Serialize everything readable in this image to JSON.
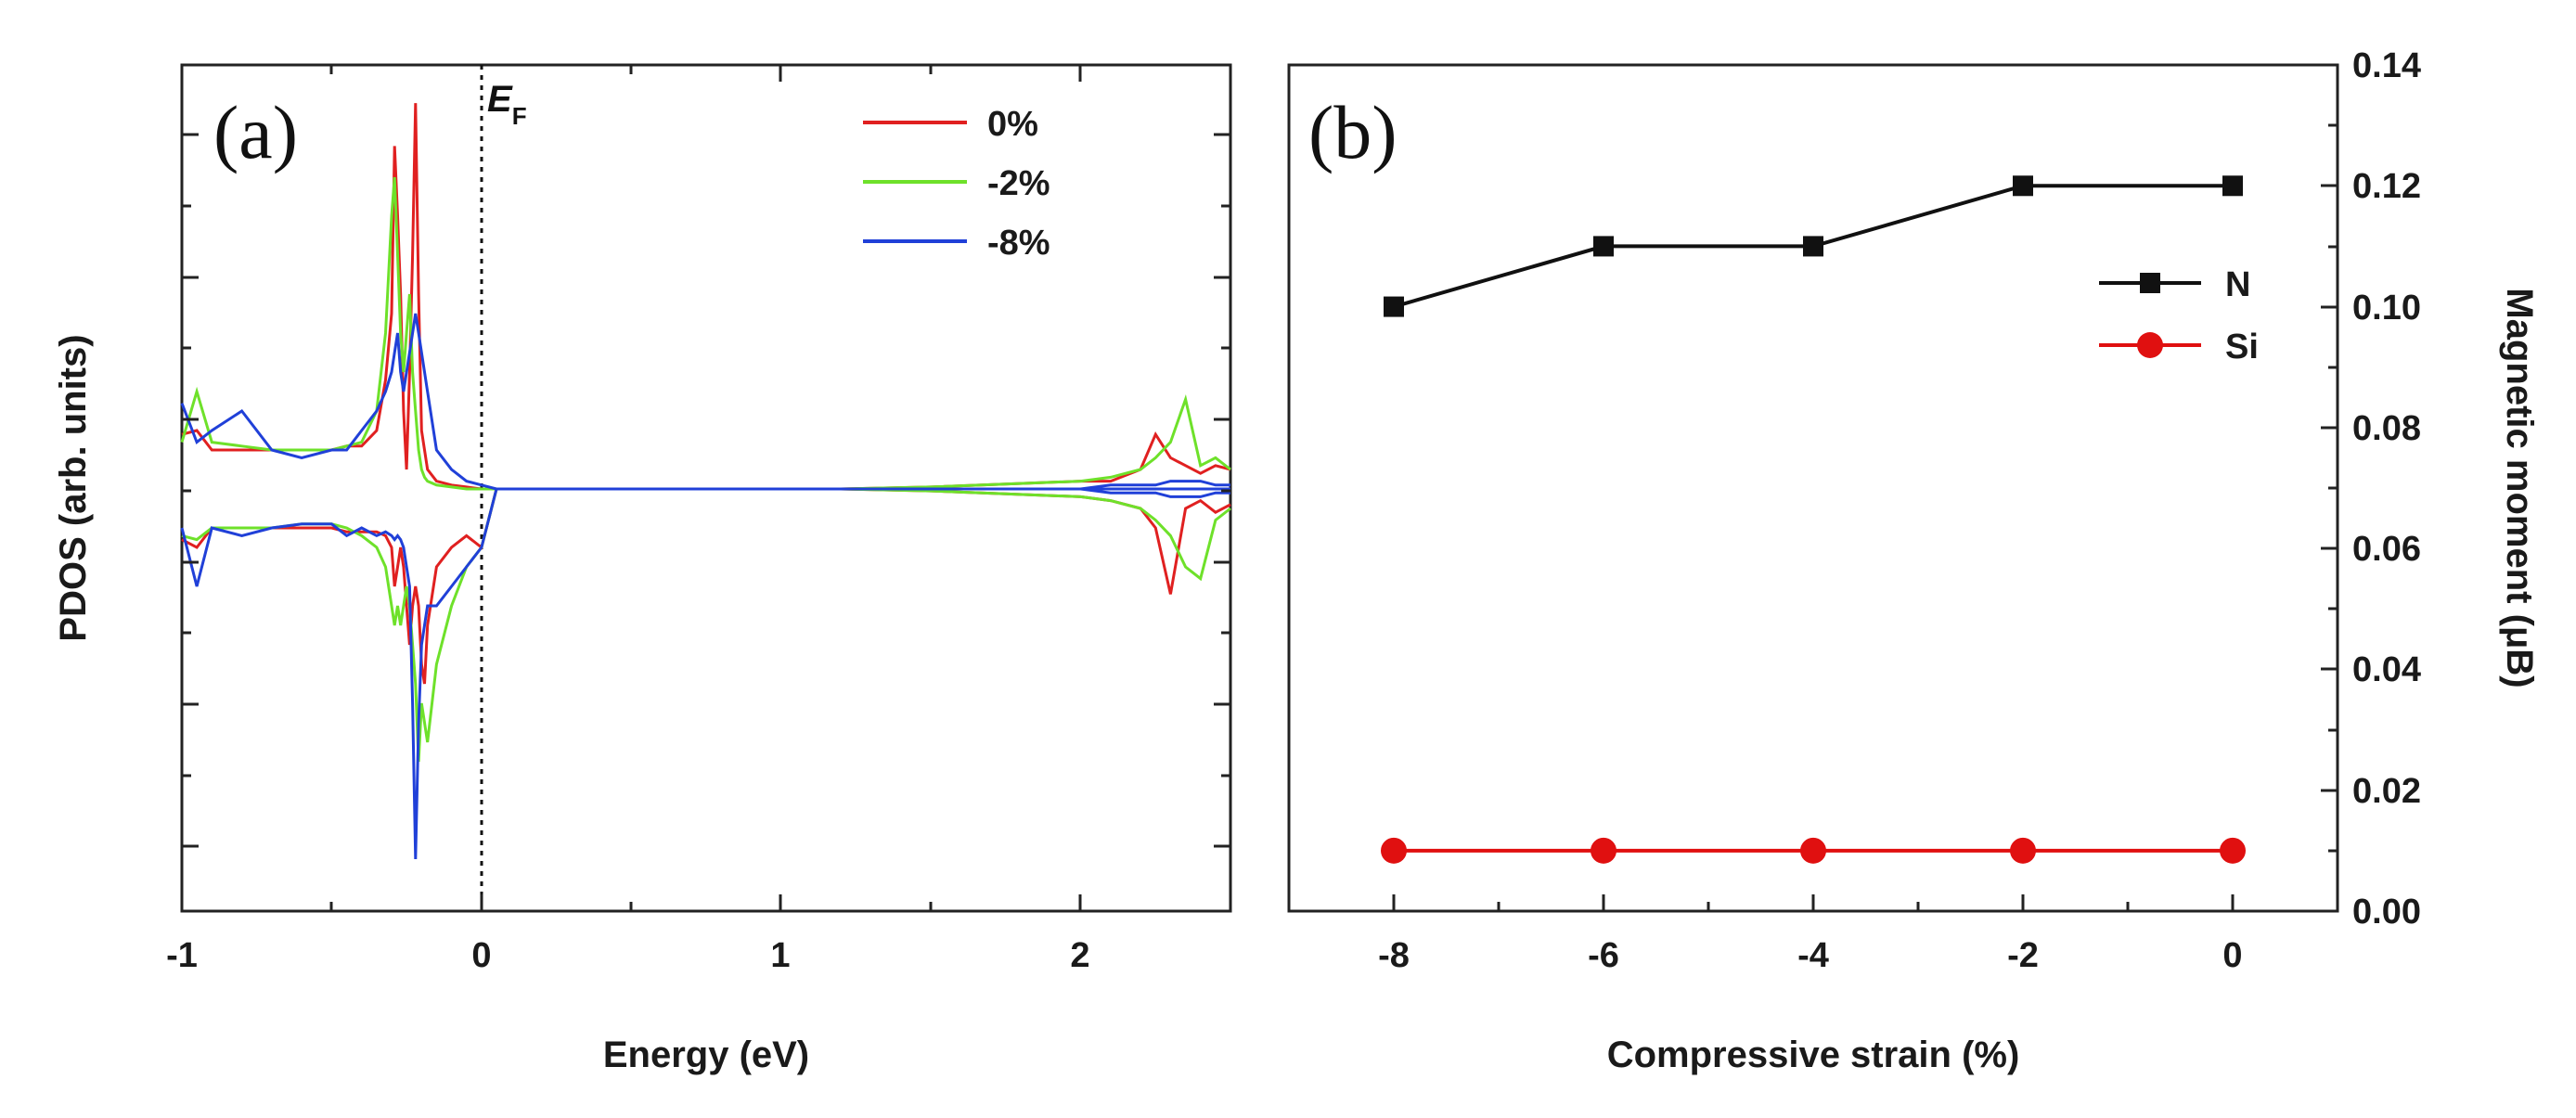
{
  "chart_data": [
    {
      "panel": "(a)",
      "type": "line",
      "xlabel": "Energy (eV)",
      "ylabel": "PDOS (arb. units)",
      "xlim": [
        -1,
        2.5
      ],
      "ylim": [
        -1,
        1
      ],
      "xticks": [
        "-1",
        "0",
        "1",
        "2"
      ],
      "yticks_labeled": false,
      "annotation": {
        "main": "E",
        "sub": "F",
        "at_x": 0
      },
      "series": [
        {
          "name": "0%",
          "color": "#e02020",
          "x": [
            -1,
            -0.95,
            -0.9,
            -0.8,
            -0.7,
            -0.6,
            -0.5,
            -0.45,
            -0.4,
            -0.35,
            -0.32,
            -0.3,
            -0.29,
            -0.28,
            -0.27,
            -0.26,
            -0.25,
            -0.24,
            -0.23,
            -0.22,
            -0.21,
            -0.2,
            -0.19,
            -0.18,
            -0.15,
            -0.1,
            -0.05,
            0,
            0.05,
            1.2,
            1.5,
            2.0,
            2.1,
            2.2,
            2.25,
            2.3,
            2.35,
            2.4,
            2.45,
            2.5
          ],
          "up": [
            0.14,
            0.15,
            0.1,
            0.1,
            0.1,
            0.1,
            0.1,
            0.11,
            0.11,
            0.15,
            0.28,
            0.45,
            0.88,
            0.7,
            0.5,
            0.2,
            0.05,
            0.3,
            0.6,
            0.99,
            0.5,
            0.15,
            0.1,
            0.05,
            0.02,
            0.01,
            0.005,
            0.0,
            0.0,
            0.0,
            0.005,
            0.02,
            0.02,
            0.05,
            0.14,
            0.08,
            0.06,
            0.04,
            0.06,
            0.05
          ],
          "down": [
            -0.13,
            -0.15,
            -0.1,
            -0.1,
            -0.1,
            -0.1,
            -0.1,
            -0.11,
            -0.11,
            -0.11,
            -0.12,
            -0.15,
            -0.25,
            -0.2,
            -0.15,
            -0.2,
            -0.3,
            -0.4,
            -0.3,
            -0.25,
            -0.3,
            -0.45,
            -0.5,
            -0.35,
            -0.2,
            -0.15,
            -0.12,
            -0.15,
            -0.0,
            0.0,
            -0.005,
            -0.02,
            -0.03,
            -0.05,
            -0.1,
            -0.27,
            -0.05,
            -0.03,
            -0.06,
            -0.04
          ]
        },
        {
          "name": "-2%",
          "color": "#6ee12a",
          "x": [
            -1,
            -0.95,
            -0.9,
            -0.8,
            -0.7,
            -0.6,
            -0.5,
            -0.45,
            -0.4,
            -0.35,
            -0.32,
            -0.3,
            -0.29,
            -0.28,
            -0.27,
            -0.26,
            -0.25,
            -0.24,
            -0.23,
            -0.22,
            -0.21,
            -0.2,
            -0.19,
            -0.18,
            -0.15,
            -0.1,
            -0.05,
            0,
            0.05,
            1.2,
            1.5,
            2.0,
            2.1,
            2.2,
            2.25,
            2.3,
            2.35,
            2.4,
            2.45,
            2.5
          ],
          "up": [
            0.12,
            0.25,
            0.12,
            0.11,
            0.1,
            0.1,
            0.1,
            0.11,
            0.12,
            0.2,
            0.4,
            0.7,
            0.8,
            0.6,
            0.4,
            0.3,
            0.4,
            0.5,
            0.3,
            0.2,
            0.1,
            0.05,
            0.03,
            0.02,
            0.01,
            0.005,
            0.0,
            0.0,
            0.0,
            0.0,
            0.005,
            0.02,
            0.03,
            0.05,
            0.08,
            0.12,
            0.23,
            0.06,
            0.08,
            0.05
          ],
          "down": [
            -0.12,
            -0.13,
            -0.1,
            -0.1,
            -0.1,
            -0.09,
            -0.09,
            -0.1,
            -0.12,
            -0.15,
            -0.2,
            -0.3,
            -0.35,
            -0.3,
            -0.35,
            -0.3,
            -0.25,
            -0.3,
            -0.4,
            -0.5,
            -0.7,
            -0.55,
            -0.6,
            -0.65,
            -0.45,
            -0.3,
            -0.2,
            -0.15,
            0.0,
            0.0,
            -0.005,
            -0.02,
            -0.03,
            -0.05,
            -0.08,
            -0.12,
            -0.2,
            -0.23,
            -0.08,
            -0.05
          ]
        },
        {
          "name": "-8%",
          "color": "#2040d8",
          "x": [
            -1,
            -0.95,
            -0.9,
            -0.8,
            -0.7,
            -0.6,
            -0.5,
            -0.45,
            -0.4,
            -0.35,
            -0.32,
            -0.3,
            -0.29,
            -0.28,
            -0.27,
            -0.26,
            -0.25,
            -0.24,
            -0.23,
            -0.22,
            -0.21,
            -0.2,
            -0.19,
            -0.18,
            -0.15,
            -0.1,
            -0.05,
            0,
            0.05,
            1.2,
            1.5,
            2.0,
            2.1,
            2.2,
            2.25,
            2.3,
            2.35,
            2.4,
            2.45,
            2.5
          ],
          "up": [
            0.22,
            0.12,
            0.15,
            0.2,
            0.1,
            0.08,
            0.1,
            0.1,
            0.15,
            0.2,
            0.25,
            0.3,
            0.35,
            0.4,
            0.3,
            0.25,
            0.3,
            0.35,
            0.4,
            0.45,
            0.4,
            0.35,
            0.3,
            0.25,
            0.1,
            0.05,
            0.02,
            0.01,
            0.0,
            0.0,
            0.0,
            0.0,
            0.01,
            0.01,
            0.01,
            0.02,
            0.02,
            0.02,
            0.01,
            0.01
          ],
          "down": [
            -0.1,
            -0.25,
            -0.1,
            -0.12,
            -0.1,
            -0.09,
            -0.09,
            -0.12,
            -0.1,
            -0.12,
            -0.11,
            -0.12,
            -0.13,
            -0.12,
            -0.13,
            -0.15,
            -0.2,
            -0.25,
            -0.55,
            -0.95,
            -0.6,
            -0.4,
            -0.35,
            -0.3,
            -0.3,
            -0.25,
            -0.2,
            -0.15,
            0.0,
            0.0,
            0.0,
            0.0,
            -0.01,
            -0.01,
            -0.01,
            -0.02,
            -0.02,
            -0.02,
            -0.01,
            -0.01
          ]
        }
      ]
    },
    {
      "panel": "(b)",
      "type": "line",
      "xlabel": "Compressive strain (%)",
      "ylabel": "Magnetic moment (μB)",
      "xlim": [
        -9,
        1
      ],
      "ylim": [
        0,
        0.14
      ],
      "xticks": [
        "-8",
        "-6",
        "-4",
        "-2",
        "0"
      ],
      "yticks": [
        "0.00",
        "0.02",
        "0.04",
        "0.06",
        "0.08",
        "0.10",
        "0.12",
        "0.14"
      ],
      "legend_position": "right",
      "series": [
        {
          "name": "N",
          "color": "#111111",
          "marker": "square",
          "x": [
            -8,
            -6,
            -4,
            -2,
            0
          ],
          "y": [
            0.1,
            0.11,
            0.11,
            0.12,
            0.12
          ]
        },
        {
          "name": "Si",
          "color": "#e01010",
          "marker": "circle",
          "x": [
            -8,
            -6,
            -4,
            -2,
            0
          ],
          "y": [
            0.01,
            0.01,
            0.01,
            0.01,
            0.01
          ]
        }
      ]
    }
  ]
}
